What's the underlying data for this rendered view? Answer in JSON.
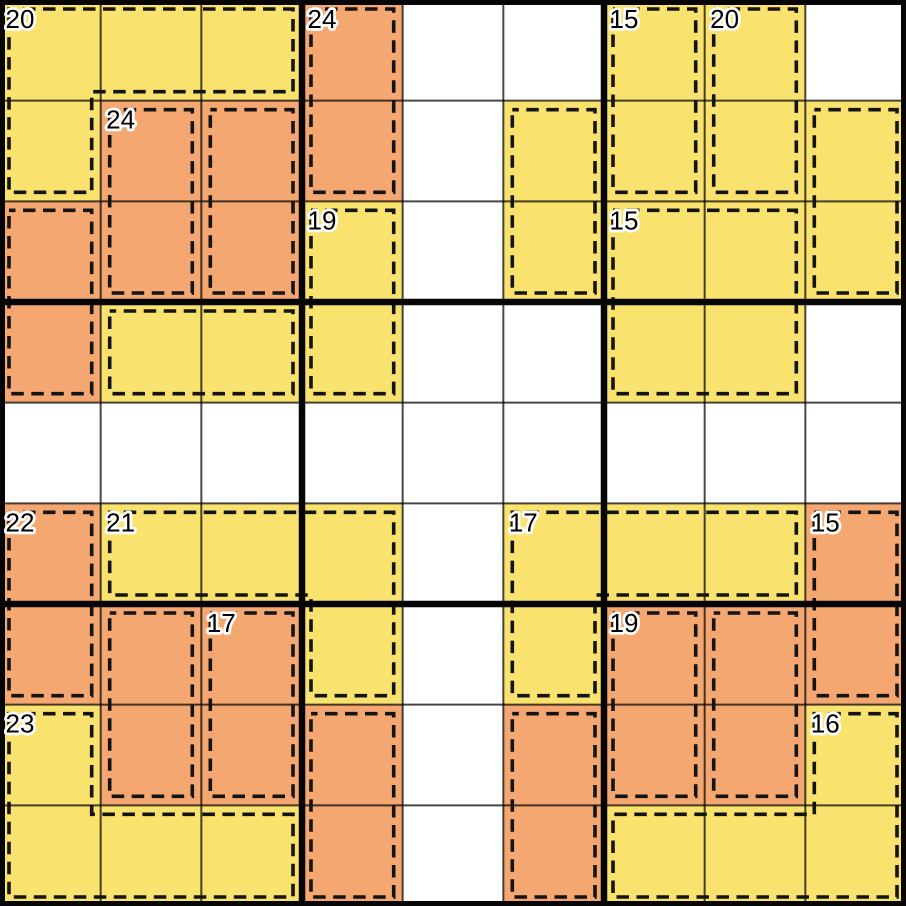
{
  "board": {
    "name": "killer-sudoku-board",
    "size": 9,
    "palette": {
      "yellow": "#F9E26D",
      "orange": "#F4A770",
      "white": "#FFFFFF",
      "thin_line": "#000000",
      "thin_line_opacity": 0.72,
      "thick_line": "#060606",
      "cage_dash": "#141414",
      "label_text": "#000000",
      "label_halo": "#FFFFFF"
    },
    "cages": [
      {
        "sum": "20",
        "color": "yellow",
        "cells": [
          [
            1,
            1
          ],
          [
            1,
            2
          ],
          [
            1,
            3
          ],
          [
            2,
            1
          ]
        ],
        "label_cell": [
          1,
          1
        ]
      },
      {
        "sum": "24",
        "color": "orange",
        "cells": [
          [
            1,
            4
          ],
          [
            2,
            4
          ]
        ],
        "label_cell": [
          1,
          4
        ]
      },
      {
        "sum": "15",
        "color": "yellow",
        "cells": [
          [
            1,
            7
          ],
          [
            2,
            7
          ]
        ],
        "label_cell": [
          1,
          7
        ]
      },
      {
        "sum": "20",
        "color": "yellow",
        "cells": [
          [
            1,
            8
          ],
          [
            2,
            8
          ]
        ],
        "label_cell": [
          1,
          8
        ]
      },
      {
        "sum": "24",
        "color": "orange",
        "cells": [
          [
            2,
            2
          ],
          [
            3,
            2
          ]
        ],
        "label_cell": [
          2,
          2
        ]
      },
      {
        "sum": null,
        "color": "orange",
        "cells": [
          [
            2,
            3
          ],
          [
            3,
            3
          ]
        ],
        "label_cell": null
      },
      {
        "sum": null,
        "color": "yellow",
        "cells": [
          [
            2,
            6
          ],
          [
            3,
            6
          ]
        ],
        "label_cell": null
      },
      {
        "sum": null,
        "color": "yellow",
        "cells": [
          [
            2,
            9
          ],
          [
            3,
            9
          ]
        ],
        "label_cell": null
      },
      {
        "sum": null,
        "color": "orange",
        "cells": [
          [
            3,
            1
          ],
          [
            4,
            1
          ]
        ],
        "label_cell": null
      },
      {
        "sum": "19",
        "color": "yellow",
        "cells": [
          [
            3,
            4
          ],
          [
            4,
            4
          ]
        ],
        "label_cell": [
          3,
          4
        ]
      },
      {
        "sum": "15",
        "color": "yellow",
        "cells": [
          [
            3,
            7
          ],
          [
            3,
            8
          ],
          [
            4,
            7
          ],
          [
            4,
            8
          ]
        ],
        "label_cell": [
          3,
          7
        ]
      },
      {
        "sum": null,
        "color": "yellow",
        "cells": [
          [
            4,
            2
          ],
          [
            4,
            3
          ]
        ],
        "label_cell": null
      },
      {
        "sum": "22",
        "color": "orange",
        "cells": [
          [
            6,
            1
          ],
          [
            7,
            1
          ]
        ],
        "label_cell": [
          6,
          1
        ]
      },
      {
        "sum": "21",
        "color": "yellow",
        "cells": [
          [
            6,
            2
          ],
          [
            6,
            3
          ],
          [
            6,
            4
          ],
          [
            7,
            4
          ]
        ],
        "label_cell": [
          6,
          2
        ]
      },
      {
        "sum": "17",
        "color": "yellow",
        "cells": [
          [
            6,
            6
          ],
          [
            6,
            7
          ],
          [
            6,
            8
          ],
          [
            7,
            6
          ]
        ],
        "label_cell": [
          6,
          6
        ]
      },
      {
        "sum": "15",
        "color": "orange",
        "cells": [
          [
            6,
            9
          ],
          [
            7,
            9
          ]
        ],
        "label_cell": [
          6,
          9
        ]
      },
      {
        "sum": null,
        "color": "orange",
        "cells": [
          [
            7,
            2
          ],
          [
            8,
            2
          ]
        ],
        "label_cell": null
      },
      {
        "sum": "17",
        "color": "orange",
        "cells": [
          [
            7,
            3
          ],
          [
            8,
            3
          ]
        ],
        "label_cell": [
          7,
          3
        ]
      },
      {
        "sum": "19",
        "color": "orange",
        "cells": [
          [
            7,
            7
          ],
          [
            8,
            7
          ]
        ],
        "label_cell": [
          7,
          7
        ]
      },
      {
        "sum": null,
        "color": "orange",
        "cells": [
          [
            7,
            8
          ],
          [
            8,
            8
          ]
        ],
        "label_cell": null
      },
      {
        "sum": "23",
        "color": "yellow",
        "cells": [
          [
            8,
            1
          ],
          [
            9,
            1
          ],
          [
            9,
            2
          ],
          [
            9,
            3
          ]
        ],
        "label_cell": [
          8,
          1
        ]
      },
      {
        "sum": null,
        "color": "orange",
        "cells": [
          [
            8,
            4
          ],
          [
            9,
            4
          ]
        ],
        "label_cell": null
      },
      {
        "sum": null,
        "color": "orange",
        "cells": [
          [
            8,
            6
          ],
          [
            9,
            6
          ]
        ],
        "label_cell": null
      },
      {
        "sum": "16",
        "color": "yellow",
        "cells": [
          [
            8,
            9
          ],
          [
            9,
            7
          ],
          [
            9,
            8
          ],
          [
            9,
            9
          ]
        ],
        "label_cell": [
          8,
          9
        ]
      }
    ]
  }
}
